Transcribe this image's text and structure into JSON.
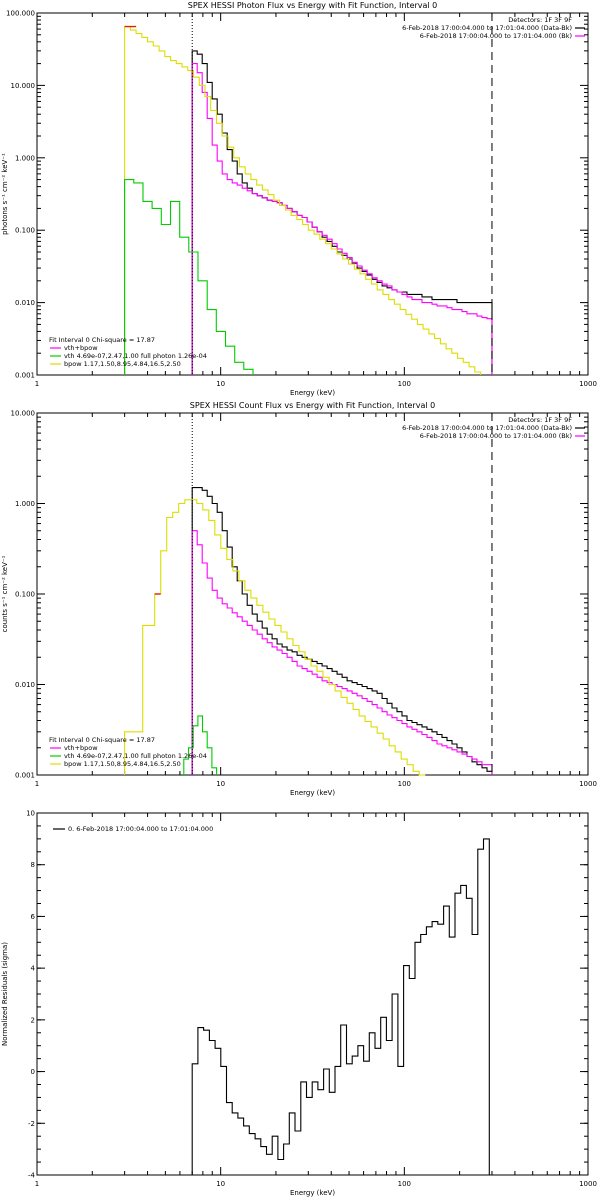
{
  "colors": {
    "data": "#000000",
    "total": "#ff00ff",
    "vth": "#00cc00",
    "bpow": "#dddd00",
    "tiny": "#dd2200",
    "axis": "#000000"
  },
  "chart_data": [
    {
      "type": "line",
      "title": "SPEX HESSI Photon Flux vs Energy with Fit Function, Interval 0",
      "xlabel": "Energy (keV)",
      "ylabel": "photons s⁻¹ cm⁻² keV⁻¹",
      "xscale": "log",
      "yscale": "log",
      "xlim": [
        1,
        1000
      ],
      "ylim": [
        0.001,
        100
      ],
      "xticks": [
        {
          "v": 1,
          "label": "1"
        },
        {
          "v": 10,
          "label": "10"
        },
        {
          "v": 100,
          "label": "100"
        },
        {
          "v": 1000,
          "label": "1000"
        }
      ],
      "yticks": [
        {
          "v": 0.001,
          "label": "0.001"
        },
        {
          "v": 0.01,
          "label": "0.010"
        },
        {
          "v": 0.1,
          "label": "0.100"
        },
        {
          "v": 1,
          "label": "1.000"
        },
        {
          "v": 10,
          "label": "10.000"
        },
        {
          "v": 100,
          "label": "100.000"
        }
      ],
      "vlines": [
        {
          "x": 7,
          "style": "dotted"
        },
        {
          "x": 300,
          "style": "dashed"
        }
      ],
      "legend_tr": [
        "Detectors: 1F 3F 9F",
        "6-Feb-2018 17:00:04.000 to 17:01:04.000 (Data-Bk)",
        "6-Feb-2018 17:00:04.000 to 17:01:04.000 (Bk)"
      ],
      "legend_bl": [
        "Fit Interval 0   Chi-square = 17.87",
        "vth+bpow",
        "vth 4.69e-07,2.47,1.00  full photon 1.26e-04",
        "bpow 1.17,1.50,8.95,4.84,16.5,2.50"
      ],
      "series": [
        {
          "name": "data",
          "color_key": "data",
          "start": 7,
          "end": 300,
          "y": [
            30,
            27,
            20,
            11,
            6.5,
            4,
            2.2,
            1.3,
            0.9,
            0.6,
            0.45,
            0.38,
            0.32,
            0.3,
            0.28,
            0.26,
            0.25,
            0.24,
            0.22,
            0.2,
            0.18,
            0.16,
            0.15,
            0.13,
            0.11,
            0.095,
            0.08,
            0.07,
            0.06,
            0.05,
            0.045,
            0.04,
            0.035,
            0.03,
            0.027,
            0.024,
            0.021,
            0.019,
            0.017,
            0.016,
            0.015,
            0.014,
            0.014,
            0.013,
            0.013,
            0.013,
            0.012,
            0.012,
            0.011,
            0.011,
            0.011,
            0.011,
            0.011,
            0.01,
            0.01,
            0.01,
            0.01,
            0.01,
            0.01,
            0.01
          ]
        },
        {
          "name": "total",
          "color_key": "total",
          "start": 7,
          "end": 300,
          "y": [
            20,
            15,
            8,
            3.5,
            1.5,
            0.9,
            0.6,
            0.5,
            0.45,
            0.42,
            0.38,
            0.35,
            0.32,
            0.3,
            0.28,
            0.26,
            0.25,
            0.24,
            0.22,
            0.2,
            0.18,
            0.16,
            0.15,
            0.13,
            0.11,
            0.095,
            0.085,
            0.075,
            0.065,
            0.055,
            0.048,
            0.042,
            0.036,
            0.032,
            0.028,
            0.025,
            0.022,
            0.02,
            0.018,
            0.017,
            0.015,
            0.014,
            0.013,
            0.012,
            0.011,
            0.011,
            0.01,
            0.01,
            0.0095,
            0.009,
            0.009,
            0.0085,
            0.008,
            0.008,
            0.0075,
            0.007,
            0.007,
            0.0065,
            0.0062,
            0.006
          ]
        },
        {
          "name": "bpow",
          "color_key": "bpow",
          "start": 3,
          "end": 260,
          "y": [
            65,
            58,
            52,
            46,
            40,
            35,
            30,
            25,
            22,
            20,
            18,
            16,
            13,
            10,
            7,
            4.5,
            3,
            2,
            1.4,
            1,
            0.75,
            0.6,
            0.5,
            0.42,
            0.36,
            0.31,
            0.26,
            0.22,
            0.19,
            0.16,
            0.14,
            0.12,
            0.1,
            0.088,
            0.075,
            0.065,
            0.055,
            0.047,
            0.04,
            0.034,
            0.029,
            0.025,
            0.021,
            0.018,
            0.015,
            0.013,
            0.011,
            0.0095,
            0.008,
            0.0069,
            0.0059,
            0.005,
            0.0043,
            0.0037,
            0.0032,
            0.0027,
            0.0023,
            0.002,
            0.0017,
            0.0015,
            0.0013,
            0.0011
          ]
        },
        {
          "name": "vth",
          "color_key": "vth",
          "start": 3,
          "end": 15,
          "y": [
            0.5,
            0.45,
            0.25,
            0.2,
            0.12,
            0.25,
            0.08,
            0.05,
            0.02,
            0.008,
            0.004,
            0.0025,
            0.0015,
            0.0012
          ]
        }
      ]
    },
    {
      "type": "line",
      "title": "SPEX HESSI Count Flux vs Energy with Fit Function, Interval 0",
      "xlabel": "Energy (keV)",
      "ylabel": "counts s⁻¹ cm⁻² keV⁻¹",
      "xscale": "log",
      "yscale": "log",
      "xlim": [
        1,
        1000
      ],
      "ylim": [
        0.001,
        10
      ],
      "xticks": [
        {
          "v": 1,
          "label": "1"
        },
        {
          "v": 10,
          "label": "10"
        },
        {
          "v": 100,
          "label": "100"
        },
        {
          "v": 1000,
          "label": "1000"
        }
      ],
      "yticks": [
        {
          "v": 0.001,
          "label": "0.001"
        },
        {
          "v": 0.01,
          "label": "0.010"
        },
        {
          "v": 0.1,
          "label": "0.100"
        },
        {
          "v": 1,
          "label": "1.000"
        },
        {
          "v": 10,
          "label": "10.000"
        }
      ],
      "vlines": [
        {
          "x": 7,
          "style": "dotted"
        },
        {
          "x": 300,
          "style": "dashed"
        }
      ],
      "legend_tr": [
        "Detectors: 1F 3F 9F",
        "6-Feb-2018 17:00:04.000 to 17:01:04.000 (Data-Bk)",
        "6-Feb-2018 17:00:04.000 to 17:01:04.000 (Bk)"
      ],
      "legend_bl": [
        "Fit Interval 0   Chi-square = 17.87",
        "vth+bpow",
        "vth 4.69e-07,2.47,1.00  full photon 1.26e-04",
        "bpow 1.17,1.50,8.95,4.84,16.5,2.50"
      ],
      "series": [
        {
          "name": "data",
          "color_key": "data",
          "start": 7,
          "end": 300,
          "y": [
            1.5,
            1.5,
            1.4,
            1.2,
            1.0,
            0.8,
            0.5,
            0.33,
            0.2,
            0.14,
            0.1,
            0.075,
            0.06,
            0.05,
            0.042,
            0.036,
            0.032,
            0.028,
            0.026,
            0.024,
            0.023,
            0.021,
            0.02,
            0.019,
            0.018,
            0.017,
            0.016,
            0.015,
            0.014,
            0.013,
            0.012,
            0.011,
            0.0105,
            0.01,
            0.0095,
            0.009,
            0.0085,
            0.008,
            0.007,
            0.0062,
            0.0055,
            0.005,
            0.0045,
            0.004,
            0.0038,
            0.0036,
            0.0034,
            0.0032,
            0.003,
            0.0028,
            0.0026,
            0.0024,
            0.0022,
            0.002,
            0.0018,
            0.0016,
            0.0014,
            0.0013,
            0.0012,
            0.0011
          ]
        },
        {
          "name": "total",
          "color_key": "total",
          "start": 7,
          "end": 300,
          "y": [
            0.5,
            0.35,
            0.22,
            0.15,
            0.11,
            0.09,
            0.078,
            0.07,
            0.062,
            0.056,
            0.05,
            0.045,
            0.04,
            0.036,
            0.032,
            0.029,
            0.026,
            0.024,
            0.022,
            0.02,
            0.018,
            0.016,
            0.015,
            0.014,
            0.013,
            0.012,
            0.011,
            0.0105,
            0.01,
            0.0095,
            0.009,
            0.0085,
            0.008,
            0.0075,
            0.007,
            0.0065,
            0.006,
            0.0055,
            0.005,
            0.0046,
            0.0043,
            0.004,
            0.0037,
            0.0034,
            0.0032,
            0.003,
            0.0028,
            0.0026,
            0.0024,
            0.0022,
            0.0021,
            0.002,
            0.0019,
            0.0018,
            0.0017,
            0.0016,
            0.0015,
            0.0014,
            0.0013,
            0.0013
          ]
        },
        {
          "name": "bpow",
          "color_key": "bpow",
          "start": 3,
          "end": 130,
          "y": [
            0.003,
            0.003,
            0.003,
            0.045,
            0.045,
            0.1,
            0.3,
            0.7,
            0.8,
            1.0,
            1.1,
            1.1,
            1.0,
            0.85,
            0.65,
            0.45,
            0.32,
            0.24,
            0.18,
            0.14,
            0.11,
            0.09,
            0.075,
            0.063,
            0.053,
            0.045,
            0.038,
            0.032,
            0.027,
            0.023,
            0.019,
            0.016,
            0.014,
            0.012,
            0.01,
            0.0085,
            0.0072,
            0.0062,
            0.0053,
            0.0045,
            0.0039,
            0.0034,
            0.0029,
            0.0025,
            0.0021,
            0.0018,
            0.0015,
            0.0013,
            0.0011,
            0.001
          ]
        },
        {
          "name": "vth",
          "color_key": "vth",
          "start": 6.3,
          "end": 9.5,
          "y": [
            0.0015,
            0.002,
            0.0035,
            0.0045,
            0.003,
            0.002,
            0.0012
          ]
        }
      ]
    },
    {
      "type": "line",
      "title": "",
      "xlabel": "Energy (keV)",
      "ylabel": "Normalized Residuals (sigma)",
      "xscale": "log",
      "yscale": "linear",
      "xlim": [
        1,
        1000
      ],
      "ylim": [
        -4,
        10
      ],
      "xticks": [
        {
          "v": 1,
          "label": "1"
        },
        {
          "v": 10,
          "label": "10"
        },
        {
          "v": 100,
          "label": "100"
        },
        {
          "v": 1000,
          "label": "1000"
        }
      ],
      "yticks": [
        {
          "v": -4,
          "label": "-4"
        },
        {
          "v": -2,
          "label": "-2"
        },
        {
          "v": 0,
          "label": "0"
        },
        {
          "v": 2,
          "label": "2"
        },
        {
          "v": 4,
          "label": "4"
        },
        {
          "v": 6,
          "label": "6"
        },
        {
          "v": 8,
          "label": "8"
        },
        {
          "v": 10,
          "label": "10"
        }
      ],
      "vlines": [],
      "legend_tl": [
        "0.  6-Feb-2018 17:00:04.000 to 17:01:04.000"
      ],
      "series": [
        {
          "name": "residuals",
          "color_key": "data",
          "start": 7,
          "end": 290,
          "y": [
            0.3,
            1.7,
            1.6,
            1.2,
            0.9,
            0.2,
            -1.2,
            -1.6,
            -1.8,
            -2.1,
            -2.4,
            -2.6,
            -2.9,
            -3.2,
            -2.5,
            -3.4,
            -2.8,
            -1.6,
            -2.3,
            -0.4,
            -1.0,
            -0.4,
            -0.7,
            0.1,
            -0.8,
            0.2,
            1.8,
            0.3,
            0.6,
            1.0,
            0.4,
            1.5,
            0.9,
            2.1,
            1.2,
            3.0,
            0.2,
            4.1,
            3.6,
            5.0,
            5.3,
            5.6,
            5.8,
            5.7,
            6.4,
            5.2,
            6.9,
            7.2,
            6.7,
            5.3,
            8.6,
            9.0
          ]
        }
      ]
    }
  ]
}
